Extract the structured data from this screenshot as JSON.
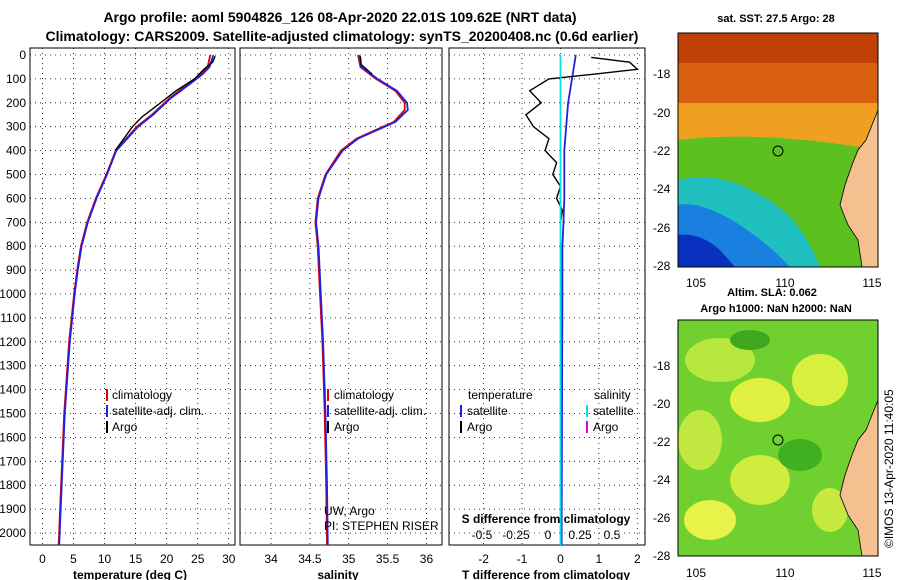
{
  "header": {
    "line1": "Argo profile: aoml 5904826_126 08-Apr-2020 22.01S 109.62E (NRT data)",
    "line2": "Climatology: CARS2009. Satellite-adjusted climatology: synTS_20200408.nc (0.6d earlier)"
  },
  "colors": {
    "climatology": "#e00000",
    "satellite": "#2020e0",
    "argo": "#000000",
    "salinity_sat": "#00e0e0",
    "salinity_argo": "#e000e0"
  },
  "depth_axis": {
    "ticks": [
      0,
      100,
      200,
      300,
      400,
      500,
      600,
      700,
      800,
      900,
      1000,
      1100,
      1200,
      1300,
      1400,
      1500,
      1600,
      1700,
      1800,
      1900,
      2000
    ],
    "range": [
      0,
      2050
    ]
  },
  "chart_data": [
    {
      "type": "line",
      "name": "temperature",
      "xlabel": "temperature (deg C)",
      "xlim": [
        -2,
        31
      ],
      "xticks": [
        0,
        5,
        10,
        15,
        20,
        25,
        30
      ],
      "legend": [
        "climatology",
        "satellite-adj. clim.",
        "Argo"
      ],
      "series": [
        {
          "name": "climatology",
          "depth": [
            0,
            50,
            80,
            120,
            180,
            250,
            300,
            400,
            500,
            600,
            700,
            800,
            900,
            1000,
            1200,
            1500,
            1800,
            2050
          ],
          "values": [
            27,
            26.6,
            25.5,
            23.5,
            20.5,
            17.6,
            15.2,
            11.8,
            10.3,
            8.6,
            7.2,
            6.2,
            5.6,
            5.1,
            4.3,
            3.5,
            3.0,
            2.6
          ]
        },
        {
          "name": "satellite-adj. clim.",
          "depth": [
            0,
            50,
            80,
            120,
            180,
            250,
            300,
            400,
            500,
            600,
            700,
            800,
            900,
            1000,
            1200,
            1500,
            1800,
            2050
          ],
          "values": [
            27.5,
            26.9,
            25.8,
            23.8,
            20.7,
            17.8,
            15.4,
            11.9,
            10.4,
            8.7,
            7.3,
            6.3,
            5.7,
            5.2,
            4.4,
            3.6,
            3.1,
            2.7
          ]
        },
        {
          "name": "Argo",
          "depth": [
            5,
            30,
            60,
            100,
            150,
            200,
            260,
            300,
            400
          ],
          "values": [
            27.8,
            27.4,
            26,
            24.5,
            21.5,
            19,
            16,
            14.5,
            11.7
          ]
        }
      ]
    },
    {
      "type": "line",
      "name": "salinity",
      "xlabel": "salinity",
      "xlim": [
        33.6,
        36.2
      ],
      "xticks": [
        34,
        34.5,
        35,
        35.5,
        36
      ],
      "legend": [
        "climatology",
        "satellite-adj. clim.",
        "Argo"
      ],
      "annotation": [
        "UW, Argo",
        "PI: STEPHEN RISER"
      ],
      "series": [
        {
          "name": "climatology",
          "depth": [
            0,
            50,
            100,
            150,
            200,
            230,
            280,
            350,
            400,
            500,
            600,
            700,
            800,
            1000,
            1200,
            1500,
            1800,
            2050
          ],
          "values": [
            35.12,
            35.15,
            35.35,
            35.6,
            35.72,
            35.72,
            35.58,
            35.1,
            34.9,
            34.7,
            34.6,
            34.57,
            34.6,
            34.63,
            34.66,
            34.69,
            34.71,
            34.72
          ]
        },
        {
          "name": "satellite-adj. clim.",
          "depth": [
            0,
            50,
            100,
            150,
            200,
            230,
            280,
            350,
            400,
            500,
            600,
            700,
            800,
            1000,
            1200,
            1500,
            1800,
            2050
          ],
          "values": [
            35.13,
            35.16,
            35.37,
            35.62,
            35.75,
            35.76,
            35.6,
            35.12,
            34.92,
            34.71,
            34.61,
            34.58,
            34.61,
            34.64,
            34.67,
            34.7,
            34.72,
            34.73
          ]
        },
        {
          "name": "Argo",
          "depth": [
            5,
            40,
            80
          ],
          "values": [
            35.15,
            35.16,
            35.3
          ]
        }
      ]
    },
    {
      "type": "line",
      "name": "difference",
      "xlabel": "T difference from climatology",
      "xlabel_top": "S difference from climatology",
      "xlim": [
        -2.9,
        2.2
      ],
      "xticks": [
        -2,
        -1,
        0,
        1,
        2
      ],
      "sticks_labels": [
        "-0.5",
        "-0.25",
        "0",
        "0.25",
        "0.5"
      ],
      "legend_headers": [
        "temperature",
        "salinity"
      ],
      "legend": [
        "satellite",
        "Argo",
        "satellite",
        "Argo"
      ],
      "series": [
        {
          "name": "T satellite",
          "depth": [
            0,
            100,
            200,
            300,
            400,
            500,
            600,
            700,
            800,
            1000,
            1500,
            2050
          ],
          "values": [
            0.4,
            0.3,
            0.2,
            0.15,
            0.1,
            0.1,
            0.1,
            0.08,
            0.05,
            0.05,
            0.04,
            0.03
          ]
        },
        {
          "name": "T Argo",
          "depth": [
            10,
            30,
            60,
            80,
            100,
            150,
            200,
            250,
            300,
            350,
            400,
            450,
            500,
            550,
            600,
            650,
            700
          ],
          "values": [
            0.8,
            1.8,
            2.0,
            0.9,
            -0.3,
            -0.8,
            -0.5,
            -0.9,
            -0.7,
            -0.3,
            -0.4,
            -0.1,
            -0.2,
            0,
            -0.1,
            0.05,
            0
          ]
        },
        {
          "name": "S satellite",
          "depth": [
            0,
            100,
            200,
            400,
            700,
            1000,
            1500,
            2050
          ],
          "values": [
            0,
            0,
            0,
            0,
            0,
            0,
            0,
            0
          ]
        }
      ]
    }
  ],
  "maps": {
    "sst": {
      "title": "sat. SST: 27.5 Argo: 28",
      "yticks": [
        "-18",
        "-20",
        "-22",
        "-24",
        "-26",
        "-28"
      ],
      "xticks": [
        "105",
        "110",
        "115"
      ]
    },
    "sla": {
      "title1": "Altim. SLA: 0.062",
      "title2": "Argo h1000: NaN h2000: NaN",
      "yticks": [
        "-18",
        "-20",
        "-22",
        "-24",
        "-26",
        "-28"
      ],
      "xticks": [
        "105",
        "110",
        "115"
      ]
    },
    "credit": "©IMOS 13-Apr-2020 11:40:05"
  }
}
